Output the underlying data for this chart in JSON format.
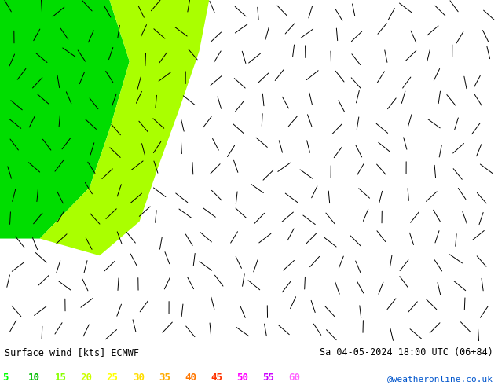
{
  "title_left": "Surface wind [kts] ECMWF",
  "title_right": "Sa 04-05-2024 18:00 UTC (06+84)",
  "credit": "@weatheronline.co.uk",
  "legend_values": [
    5,
    10,
    15,
    20,
    25,
    30,
    35,
    40,
    45,
    50,
    55,
    60
  ],
  "legend_colors": [
    "#00ff00",
    "#00bb00",
    "#88ff00",
    "#ccff00",
    "#ffff00",
    "#ffdd00",
    "#ffaa00",
    "#ff7700",
    "#ff3300",
    "#ff00ff",
    "#cc00ff",
    "#ff66ff"
  ],
  "map_bg": "#ffff00",
  "border_color": "#333355",
  "figsize": [
    6.34,
    4.9
  ],
  "dpi": 100,
  "extent": [
    2.0,
    24.0,
    44.5,
    57.5
  ],
  "green_bright_color": "#00dd00",
  "green_light_color": "#aaff00",
  "green_upper_color": "#66ee00"
}
